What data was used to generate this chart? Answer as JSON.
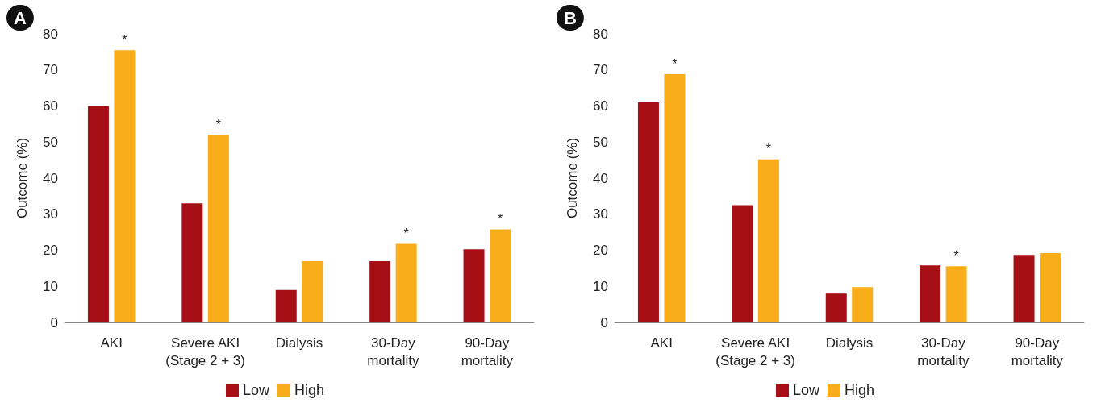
{
  "chart_data": [
    {
      "type": "bar",
      "title": "A",
      "ylabel": "Outcome (%)",
      "categories": [
        "AKI",
        "Severe AKI\n(Stage 2 + 3)",
        "Dialysis",
        "30-Day\nmortality",
        "90-Day\nmortality"
      ],
      "series": [
        {
          "name": "Low",
          "color": "#a50f15",
          "values": [
            60,
            33,
            9,
            17,
            20.3
          ]
        },
        {
          "name": "High",
          "color": "#f9ad1a",
          "values": [
            75.5,
            52,
            17,
            21.8,
            25.8
          ]
        }
      ],
      "ylim": [
        0,
        80
      ],
      "yticks": [
        0,
        10,
        20,
        30,
        40,
        50,
        60,
        70,
        80
      ],
      "grid": false,
      "legend": "bottom",
      "annotations": [
        {
          "text": "*",
          "x": "AKI",
          "y": 75.5
        },
        {
          "text": "*",
          "x": "Severe AKI\n(Stage 2 + 3)",
          "y": 52
        },
        {
          "text": "*",
          "x": "30-Day\nmortality",
          "y": 21.8
        },
        {
          "text": "*",
          "x": "90-Day\nmortality",
          "y": 25.8
        }
      ]
    },
    {
      "type": "bar",
      "title": "B",
      "ylabel": "Outcome (%)",
      "categories": [
        "AKI",
        "Severe AKI\n(Stage 2 + 3)",
        "Dialysis",
        "30-Day\nmortality",
        "90-Day\nmortality"
      ],
      "series": [
        {
          "name": "Low",
          "color": "#a50f15",
          "values": [
            61,
            32.5,
            8,
            15.8,
            18.7
          ]
        },
        {
          "name": "High",
          "color": "#f9ad1a",
          "values": [
            68.8,
            45.2,
            9.8,
            15.6,
            19.2
          ]
        }
      ],
      "ylim": [
        0,
        80
      ],
      "yticks": [
        0,
        10,
        20,
        30,
        40,
        50,
        60,
        70,
        80
      ],
      "grid": false,
      "legend": "bottom",
      "annotations": [
        {
          "text": "*",
          "x": "AKI",
          "y": 68.8
        },
        {
          "text": "*",
          "x": "Severe AKI\n(Stage 2 + 3)",
          "y": 45.2
        },
        {
          "text": "*",
          "x": "30-Day\nmortality",
          "y": 15.6
        }
      ]
    }
  ]
}
